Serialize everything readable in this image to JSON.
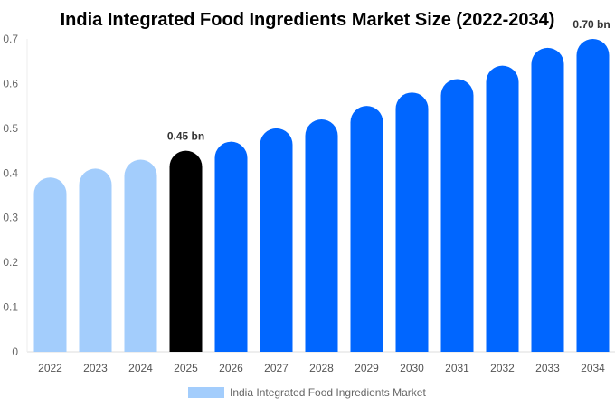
{
  "chart_data": {
    "type": "bar",
    "title": "India Integrated Food Ingredients Market Size (2022-2034)",
    "categories": [
      "2022",
      "2023",
      "2024",
      "2025",
      "2026",
      "2027",
      "2028",
      "2029",
      "2030",
      "2031",
      "2032",
      "2033",
      "2034"
    ],
    "series": [
      {
        "name": "India Integrated Food Ingredients Market",
        "values": [
          0.39,
          0.41,
          0.43,
          0.45,
          0.47,
          0.5,
          0.52,
          0.55,
          0.58,
          0.61,
          0.64,
          0.68,
          0.7
        ]
      }
    ],
    "ylim": [
      0,
      0.7
    ],
    "yticks": [
      "0",
      "0.1",
      "0.2",
      "0.3",
      "0.4",
      "0.5",
      "0.6",
      "0.7"
    ],
    "annotations": [
      {
        "index": 3,
        "text": "0.45 bn"
      },
      {
        "index": 12,
        "text": "0.70 bn"
      }
    ],
    "grid": false,
    "legend": "bottom",
    "colors": {
      "historical": "#a3cdfc",
      "current": "#000000",
      "forecast": "#0066ff"
    }
  }
}
